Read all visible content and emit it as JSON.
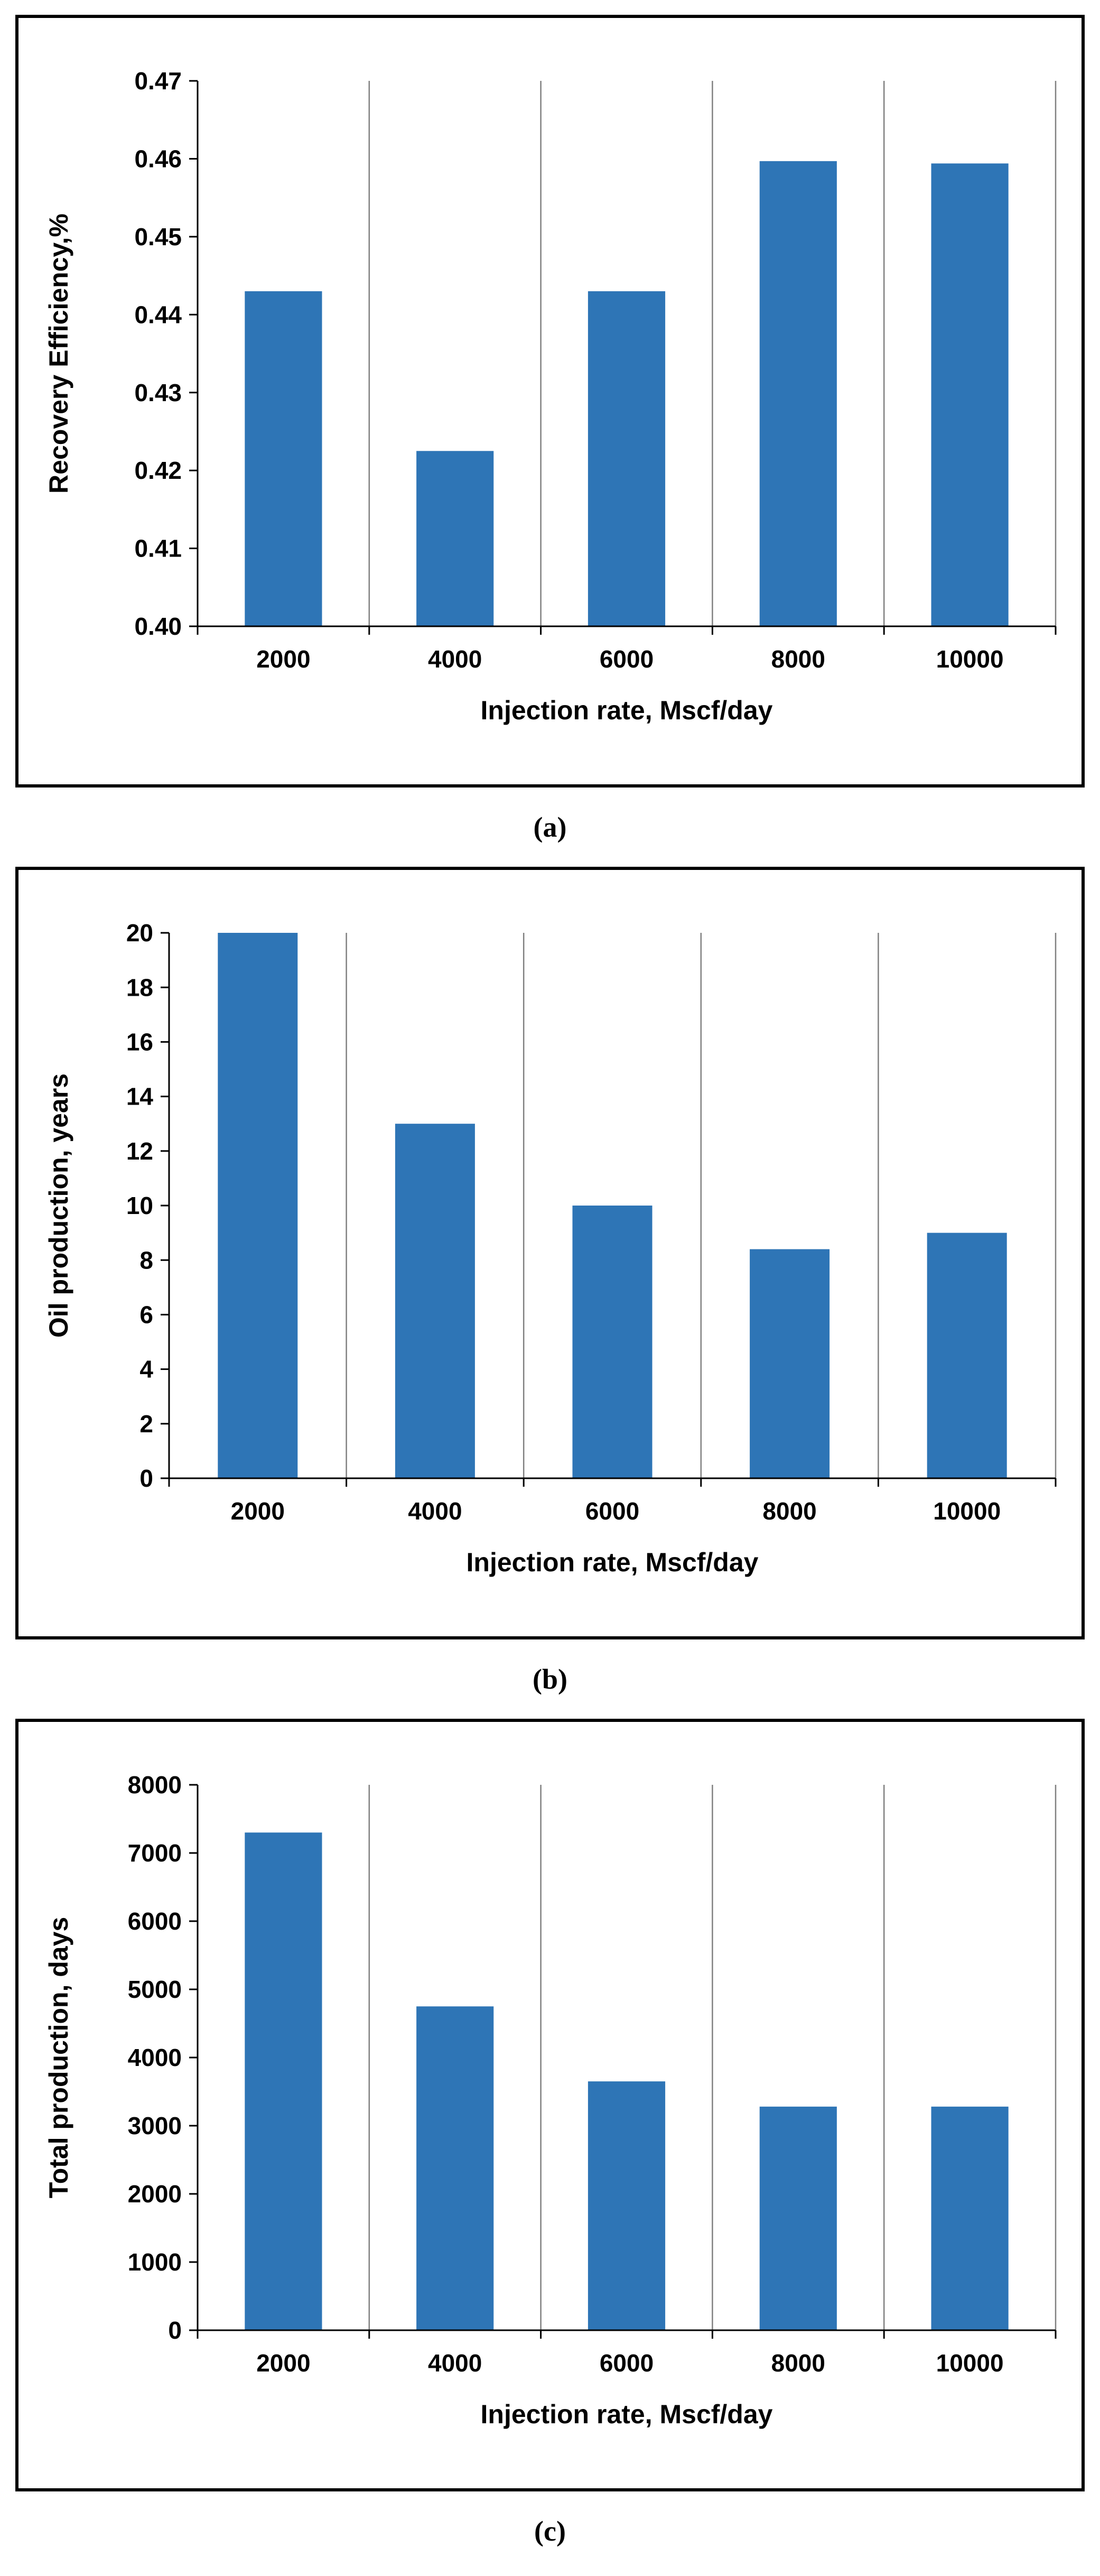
{
  "figure": {
    "background": "#ffffff",
    "description": "Three stacked bar-chart panels in bordered boxes"
  },
  "colors": {
    "bar_fill": "#2E75B6",
    "axis": "#000000",
    "text": "#000000",
    "gridline": "#808080",
    "panel_border": "#000000"
  },
  "panel_labels": {
    "a": "(a)",
    "b": "(b)",
    "c": "(c)"
  },
  "chart_data": [
    {
      "type": "bar",
      "panel": "a",
      "title": "",
      "categories": [
        "2000",
        "4000",
        "6000",
        "8000",
        "10000"
      ],
      "values": [
        0.443,
        0.4225,
        0.443,
        0.4597,
        0.4594
      ],
      "xlabel": "Injection rate, Mscf/day",
      "ylabel": "Recovery Efficiency,%",
      "ylim": [
        0.4,
        0.47
      ],
      "ytick_step": 0.01,
      "ytick_decimals": 2,
      "grid": "vertical-category-lines",
      "legend": "none"
    },
    {
      "type": "bar",
      "panel": "b",
      "title": "",
      "categories": [
        "2000",
        "4000",
        "6000",
        "8000",
        "10000"
      ],
      "values": [
        20,
        13,
        10,
        8.4,
        9
      ],
      "xlabel": "Injection rate, Mscf/day",
      "ylabel": "Oil production, years",
      "ylim": [
        0,
        20
      ],
      "ytick_step": 2,
      "ytick_decimals": 0,
      "grid": "vertical-category-lines",
      "legend": "none"
    },
    {
      "type": "bar",
      "panel": "c",
      "title": "",
      "categories": [
        "2000",
        "4000",
        "6000",
        "8000",
        "10000"
      ],
      "values": [
        7300,
        4750,
        3650,
        3280,
        3280
      ],
      "xlabel": "Injection rate, Mscf/day",
      "ylabel": "Total production, days",
      "ylim": [
        0,
        8000
      ],
      "ytick_step": 1000,
      "ytick_decimals": 0,
      "grid": "vertical-category-lines",
      "legend": "none"
    }
  ]
}
